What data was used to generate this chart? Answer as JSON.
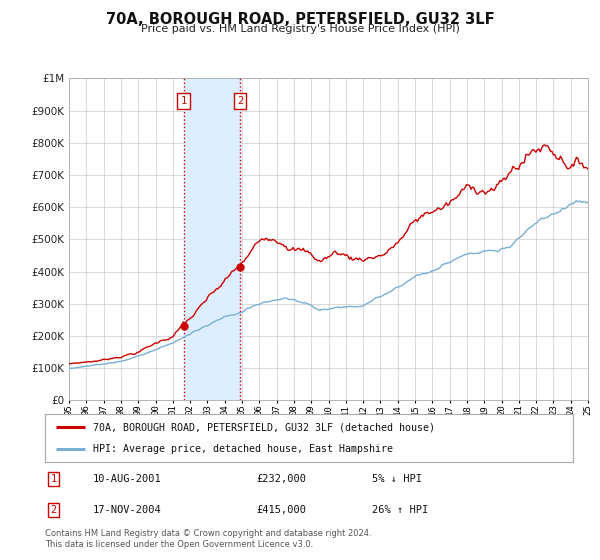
{
  "title": "70A, BOROUGH ROAD, PETERSFIELD, GU32 3LF",
  "subtitle": "Price paid vs. HM Land Registry's House Price Index (HPI)",
  "legend_red": "70A, BOROUGH ROAD, PETERSFIELD, GU32 3LF (detached house)",
  "legend_blue": "HPI: Average price, detached house, East Hampshire",
  "transaction1_date": "10-AUG-2001",
  "transaction1_price": "£232,000",
  "transaction1_hpi": "5% ↓ HPI",
  "transaction1_year": 2001.62,
  "transaction1_value": 232000,
  "transaction2_date": "17-NOV-2004",
  "transaction2_price": "£415,000",
  "transaction2_hpi": "26% ↑ HPI",
  "transaction2_year": 2004.88,
  "transaction2_value": 415000,
  "shade_start": 2001.62,
  "shade_end": 2004.88,
  "ylim_min": 0,
  "ylim_max": 1000000,
  "xlim_min": 1995,
  "xlim_max": 2025,
  "footer": "Contains HM Land Registry data © Crown copyright and database right 2024.\nThis data is licensed under the Open Government Licence v3.0.",
  "red_color": "#cc0000",
  "blue_color": "#7bafd4",
  "shade_color": "#ddeeff",
  "background_color": "#ffffff",
  "grid_color": "#cccccc"
}
